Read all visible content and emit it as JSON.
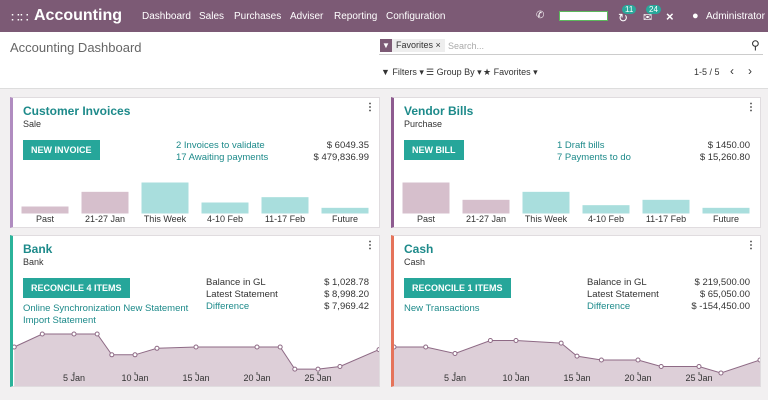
{
  "navbar": {
    "app": "Accounting",
    "menu": [
      "Dashboard",
      "Sales",
      "Purchases",
      "Adviser",
      "Reporting",
      "Configuration"
    ],
    "badges": [
      "11",
      "24"
    ],
    "user": "Administrator"
  },
  "control_panel": {
    "breadcrumb": "Accounting Dashboard",
    "facet": "Favorites",
    "search_placeholder": "Search...",
    "filters": "Filters",
    "group_by": "Group By",
    "favorites": "Favorites",
    "pager": "1-5 / 5"
  },
  "cards": [
    {
      "title": "Customer Invoices",
      "subtitle": "Sale",
      "button": "NEW INVOICE",
      "accent": "#b08cc0",
      "left_links": [],
      "rows": [
        {
          "label": "2 Invoices to validate",
          "amount": "$ 6049.35",
          "link": true
        },
        {
          "label": "17 Awaiting payments",
          "amount": "$ 479,836.99",
          "link": true
        }
      ],
      "chart": {
        "type": "bar",
        "categories": [
          "Past",
          "21-27 Jan",
          "This Week",
          "4-10 Feb",
          "11-17 Feb",
          "Future"
        ],
        "values": [
          6,
          17,
          24,
          9,
          13,
          5
        ],
        "colors": [
          "#d6bfcc",
          "#d6bfcc",
          "#a9dedd",
          "#a9dedd",
          "#a9dedd",
          "#a9dedd"
        ],
        "ylim": [
          0,
          30
        ]
      }
    },
    {
      "title": "Vendor Bills",
      "subtitle": "Purchase",
      "button": "NEW BILL",
      "accent": "#8e5b90",
      "left_links": [],
      "rows": [
        {
          "label": "1 Draft bills",
          "amount": "$ 1450.00",
          "link": true
        },
        {
          "label": "7 Payments to do",
          "amount": "$ 15,260.80",
          "link": true
        }
      ],
      "chart": {
        "type": "bar",
        "categories": [
          "Past",
          "21-27 Jan",
          "This Week",
          "4-10 Feb",
          "11-17 Feb",
          "Future"
        ],
        "values": [
          24,
          11,
          17,
          7,
          11,
          5
        ],
        "colors": [
          "#d6bfcc",
          "#d6bfcc",
          "#a9dedd",
          "#a9dedd",
          "#a9dedd",
          "#a9dedd"
        ],
        "ylim": [
          0,
          30
        ]
      }
    },
    {
      "title": "Bank",
      "subtitle": "Bank",
      "button": "RECONCILE 4 ITEMS",
      "accent": "#2bb39a",
      "left_links": [
        "Online Synchronization New Statement",
        "Import Statement"
      ],
      "rows": [
        {
          "label": "Balance in GL",
          "amount": "$ 1,028.78",
          "link": false
        },
        {
          "label": "Latest Statement",
          "amount": "$ 8,998.20",
          "link": false
        },
        {
          "label": "Difference",
          "amount": "$ 7,969.42",
          "link": true
        }
      ],
      "chart": {
        "type": "area",
        "x": [
          0.1,
          2.4,
          5,
          6.9,
          8.1,
          10,
          11.8,
          15,
          20,
          21.9,
          23.1,
          25,
          26.8,
          30
        ],
        "values": [
          30,
          40,
          40,
          40,
          24,
          24,
          29,
          30,
          30,
          30,
          13,
          13,
          15,
          28
        ],
        "xlim": [
          0,
          30
        ],
        "ylim": [
          0,
          50
        ],
        "color": "#ddcfd8",
        "xticks": [
          {
            "value": 5,
            "label": "5 Jan"
          },
          {
            "value": 10,
            "label": "10 Jan"
          },
          {
            "value": 15,
            "label": "15 Jan"
          },
          {
            "value": 20,
            "label": "20 Jan"
          },
          {
            "value": 25,
            "label": "25 Jan"
          }
        ]
      }
    },
    {
      "title": "Cash",
      "subtitle": "Cash",
      "button": "RECONCILE 1 ITEMS",
      "accent": "#e5735a",
      "left_links": [
        "New Transactions"
      ],
      "rows": [
        {
          "label": "Balance in GL",
          "amount": "$ 219,500.00",
          "link": false
        },
        {
          "label": "Latest Statement",
          "amount": "$ 65,050.00",
          "link": false
        },
        {
          "label": "Difference",
          "amount": "$ -154,450.00",
          "link": true
        }
      ],
      "chart": {
        "type": "area",
        "x": [
          0,
          2.6,
          5,
          7.9,
          10,
          13.7,
          15,
          17,
          20,
          21.9,
          25,
          26.8,
          30
        ],
        "values": [
          30,
          30,
          25,
          35,
          35,
          33,
          23,
          20,
          20,
          15,
          15,
          10,
          20
        ],
        "xlim": [
          0,
          30
        ],
        "ylim": [
          0,
          50
        ],
        "color": "#ddcfd8",
        "xticks": [
          {
            "value": 5,
            "label": "5 Jan"
          },
          {
            "value": 10,
            "label": "10 Jan"
          },
          {
            "value": 15,
            "label": "15 Jan"
          },
          {
            "value": 20,
            "label": "20 Jan"
          },
          {
            "value": 25,
            "label": "25 Jan"
          }
        ]
      }
    }
  ]
}
